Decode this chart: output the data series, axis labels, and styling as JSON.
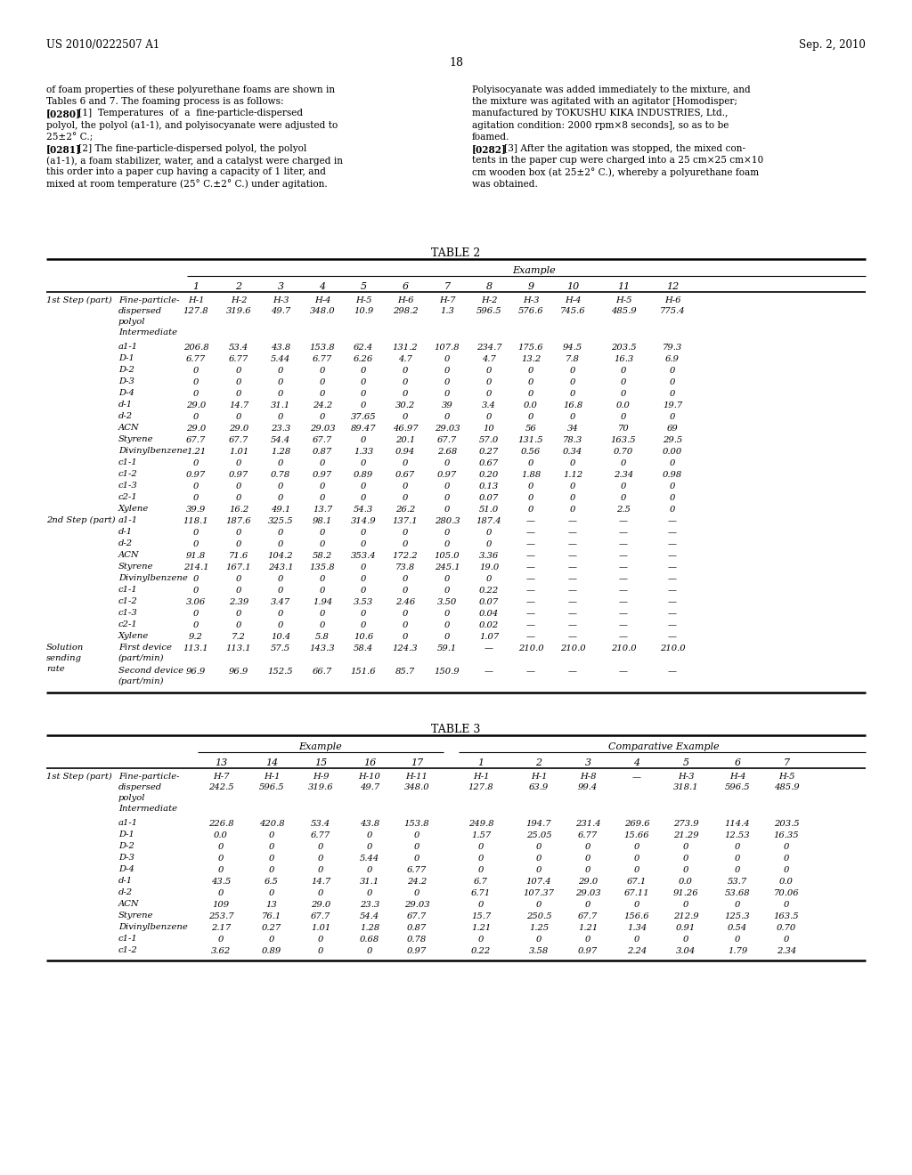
{
  "page_header_left": "US 2010/0222507 A1",
  "page_header_right": "Sep. 2, 2010",
  "page_number": "18",
  "bg": "#ffffff",
  "text_color": "#000000",
  "left_body": [
    "of foam properties of these polyurethane foams are shown in",
    "Tables 6 and 7. The foaming process is as follows:",
    "[0280]   [1]  Temperatures  of  a  fine-particle-dispersed",
    "polyol, the polyol (a1-1), and polyisocyanate were adjusted to",
    "25±2° C.;",
    "[0281]   [2] The fine-particle-dispersed polyol, the polyol",
    "(a1-1), a foam stabilizer, water, and a catalyst were charged in",
    "this order into a paper cup having a capacity of 1 liter, and",
    "mixed at room temperature (25° C.±2° C.) under agitation."
  ],
  "right_body": [
    "Polyisocyanate was added immediately to the mixture, and",
    "the mixture was agitated with an agitator [Homodisper;",
    "manufactured by TOKUSHU KIKA INDUSTRIES, Ltd.,",
    "agitation condition: 2000 rpm×8 seconds], so as to be",
    "foamed.",
    "[0282]   [3] After the agitation was stopped, the mixed con-",
    "tents in the paper cup were charged into a 25 cm×25 cm×10",
    "cm wooden box (at 25±2° C.), whereby a polyurethane foam",
    "was obtained."
  ],
  "t2_col_headers": [
    "1",
    "2",
    "3",
    "4",
    "5",
    "6",
    "7",
    "8",
    "9",
    "10",
    "11",
    "12"
  ],
  "t2_rows": [
    [
      "1st Step (part)",
      "Fine-particle-\ndispersed\npolyol\nIntermediate",
      "H-1|127.8",
      "H-2|319.6",
      "H-3|49.7",
      "H-4|348.0",
      "H-5|10.9",
      "H-6|298.2",
      "H-7|1.3",
      "H-2|596.5",
      "H-3|576.6",
      "H-4|745.6",
      "H-5|485.9",
      "H-6|775.4"
    ],
    [
      "",
      "a1-1",
      "206.8",
      "53.4",
      "43.8",
      "153.8",
      "62.4",
      "131.2",
      "107.8",
      "234.7",
      "175.6",
      "94.5",
      "203.5",
      "79.3"
    ],
    [
      "",
      "D-1",
      "6.77",
      "6.77",
      "5.44",
      "6.77",
      "6.26",
      "4.7",
      "0",
      "4.7",
      "13.2",
      "7.8",
      "16.3",
      "6.9"
    ],
    [
      "",
      "D-2",
      "0",
      "0",
      "0",
      "0",
      "0",
      "0",
      "0",
      "0",
      "0",
      "0",
      "0",
      "0"
    ],
    [
      "",
      "D-3",
      "0",
      "0",
      "0",
      "0",
      "0",
      "0",
      "0",
      "0",
      "0",
      "0",
      "0",
      "0"
    ],
    [
      "",
      "D-4",
      "0",
      "0",
      "0",
      "0",
      "0",
      "0",
      "0",
      "0",
      "0",
      "0",
      "0",
      "0"
    ],
    [
      "",
      "d-1",
      "29.0",
      "14.7",
      "31.1",
      "24.2",
      "0",
      "30.2",
      "39",
      "3.4",
      "0.0",
      "16.8",
      "0.0",
      "19.7"
    ],
    [
      "",
      "d-2",
      "0",
      "0",
      "0",
      "0",
      "37.65",
      "0",
      "0",
      "0",
      "0",
      "0",
      "0",
      "0"
    ],
    [
      "",
      "ACN",
      "29.0",
      "29.0",
      "23.3",
      "29.03",
      "89.47",
      "46.97",
      "29.03",
      "10",
      "56",
      "34",
      "70",
      "69"
    ],
    [
      "",
      "Styrene",
      "67.7",
      "67.7",
      "54.4",
      "67.7",
      "0",
      "20.1",
      "67.7",
      "57.0",
      "131.5",
      "78.3",
      "163.5",
      "29.5"
    ],
    [
      "",
      "Divinylbenzene",
      "1.21",
      "1.01",
      "1.28",
      "0.87",
      "1.33",
      "0.94",
      "2.68",
      "0.27",
      "0.56",
      "0.34",
      "0.70",
      "0.00"
    ],
    [
      "",
      "c1-1",
      "0",
      "0",
      "0",
      "0",
      "0",
      "0",
      "0",
      "0.67",
      "0",
      "0",
      "0",
      "0"
    ],
    [
      "",
      "c1-2",
      "0.97",
      "0.97",
      "0.78",
      "0.97",
      "0.89",
      "0.67",
      "0.97",
      "0.20",
      "1.88",
      "1.12",
      "2.34",
      "0.98"
    ],
    [
      "",
      "c1-3",
      "0",
      "0",
      "0",
      "0",
      "0",
      "0",
      "0",
      "0.13",
      "0",
      "0",
      "0",
      "0"
    ],
    [
      "",
      "c2-1",
      "0",
      "0",
      "0",
      "0",
      "0",
      "0",
      "0",
      "0.07",
      "0",
      "0",
      "0",
      "0"
    ],
    [
      "",
      "Xylene",
      "39.9",
      "16.2",
      "49.1",
      "13.7",
      "54.3",
      "26.2",
      "0",
      "51.0",
      "0",
      "0",
      "2.5",
      "0"
    ],
    [
      "2nd Step (part)",
      "a1-1",
      "118.1",
      "187.6",
      "325.5",
      "98.1",
      "314.9",
      "137.1",
      "280.3",
      "187.4",
      "—",
      "—",
      "—",
      "—"
    ],
    [
      "",
      "d-1",
      "0",
      "0",
      "0",
      "0",
      "0",
      "0",
      "0",
      "0",
      "—",
      "—",
      "—",
      "—"
    ],
    [
      "",
      "d-2",
      "0",
      "0",
      "0",
      "0",
      "0",
      "0",
      "0",
      "0",
      "—",
      "—",
      "—",
      "—"
    ],
    [
      "",
      "ACN",
      "91.8",
      "71.6",
      "104.2",
      "58.2",
      "353.4",
      "172.2",
      "105.0",
      "3.36",
      "—",
      "—",
      "—",
      "—"
    ],
    [
      "",
      "Styrene",
      "214.1",
      "167.1",
      "243.1",
      "135.8",
      "0",
      "73.8",
      "245.1",
      "19.0",
      "—",
      "—",
      "—",
      "—"
    ],
    [
      "",
      "Divinylbenzene",
      "0",
      "0",
      "0",
      "0",
      "0",
      "0",
      "0",
      "0",
      "—",
      "—",
      "—",
      "—"
    ],
    [
      "",
      "c1-1",
      "0",
      "0",
      "0",
      "0",
      "0",
      "0",
      "0",
      "0.22",
      "—",
      "—",
      "—",
      "—"
    ],
    [
      "",
      "c1-2",
      "3.06",
      "2.39",
      "3.47",
      "1.94",
      "3.53",
      "2.46",
      "3.50",
      "0.07",
      "—",
      "—",
      "—",
      "—"
    ],
    [
      "",
      "c1-3",
      "0",
      "0",
      "0",
      "0",
      "0",
      "0",
      "0",
      "0.04",
      "—",
      "—",
      "—",
      "—"
    ],
    [
      "",
      "c2-1",
      "0",
      "0",
      "0",
      "0",
      "0",
      "0",
      "0",
      "0.02",
      "—",
      "—",
      "—",
      "—"
    ],
    [
      "",
      "Xylene",
      "9.2",
      "7.2",
      "10.4",
      "5.8",
      "10.6",
      "0",
      "0",
      "1.07",
      "—",
      "—",
      "—",
      "—"
    ],
    [
      "Solution\nsending\nrate",
      "First device\n(part/min)",
      "113.1",
      "113.1",
      "57.5",
      "143.3",
      "58.4",
      "124.3",
      "59.1",
      "—",
      "210.0",
      "210.0",
      "210.0",
      "210.0"
    ],
    [
      "",
      "Second device\n(part/min)",
      "96.9",
      "96.9",
      "152.5",
      "66.7",
      "151.6",
      "85.7",
      "150.9",
      "—",
      "—",
      "—",
      "—",
      "—"
    ]
  ],
  "t3_ex_cols": [
    "13",
    "14",
    "15",
    "16",
    "17"
  ],
  "t3_comp_cols": [
    "1",
    "2",
    "3",
    "4",
    "5",
    "6",
    "7"
  ],
  "t3_rows": [
    [
      "1st Step (part)",
      "Fine-particle-\ndispersed\npolyol\nIntermediate",
      "H-7|242.5",
      "H-1|596.5",
      "H-9|319.6",
      "H-10|49.7",
      "H-11|348.0",
      "H-1|127.8",
      "H-1|63.9",
      "H-8|99.4",
      "—",
      "H-3|318.1",
      "H-4|596.5",
      "H-5|485.9"
    ],
    [
      "",
      "a1-1",
      "226.8",
      "420.8",
      "53.4",
      "43.8",
      "153.8",
      "249.8",
      "194.7",
      "231.4",
      "269.6",
      "273.9",
      "114.4",
      "203.5"
    ],
    [
      "",
      "D-1",
      "0.0",
      "0",
      "6.77",
      "0",
      "0",
      "1.57",
      "25.05",
      "6.77",
      "15.66",
      "21.29",
      "12.53",
      "16.35"
    ],
    [
      "",
      "D-2",
      "0",
      "0",
      "0",
      "0",
      "0",
      "0",
      "0",
      "0",
      "0",
      "0",
      "0",
      "0"
    ],
    [
      "",
      "D-3",
      "0",
      "0",
      "0",
      "5.44",
      "0",
      "0",
      "0",
      "0",
      "0",
      "0",
      "0",
      "0"
    ],
    [
      "",
      "D-4",
      "0",
      "0",
      "0",
      "0",
      "6.77",
      "0",
      "0",
      "0",
      "0",
      "0",
      "0",
      "0"
    ],
    [
      "",
      "d-1",
      "43.5",
      "6.5",
      "14.7",
      "31.1",
      "24.2",
      "6.7",
      "107.4",
      "29.0",
      "67.1",
      "0.0",
      "53.7",
      "0.0"
    ],
    [
      "",
      "d-2",
      "0",
      "0",
      "0",
      "0",
      "0",
      "6.71",
      "107.37",
      "29.03",
      "67.11",
      "91.26",
      "53.68",
      "70.06"
    ],
    [
      "",
      "ACN",
      "109",
      "13",
      "29.0",
      "23.3",
      "29.03",
      "0",
      "0",
      "0",
      "0",
      "0",
      "0",
      "0"
    ],
    [
      "",
      "Styrene",
      "253.7",
      "76.1",
      "67.7",
      "54.4",
      "67.7",
      "15.7",
      "250.5",
      "67.7",
      "156.6",
      "212.9",
      "125.3",
      "163.5"
    ],
    [
      "",
      "Divinylbenzene",
      "2.17",
      "0.27",
      "1.01",
      "1.28",
      "0.87",
      "1.21",
      "1.25",
      "1.21",
      "1.34",
      "0.91",
      "0.54",
      "0.70"
    ],
    [
      "",
      "c1-1",
      "0",
      "0",
      "0",
      "0.68",
      "0.78",
      "0",
      "0",
      "0",
      "0",
      "0",
      "0",
      "0"
    ],
    [
      "",
      "c1-2",
      "3.62",
      "0.89",
      "0",
      "0",
      "0.97",
      "0.22",
      "3.58",
      "0.97",
      "2.24",
      "3.04",
      "1.79",
      "2.34"
    ]
  ]
}
